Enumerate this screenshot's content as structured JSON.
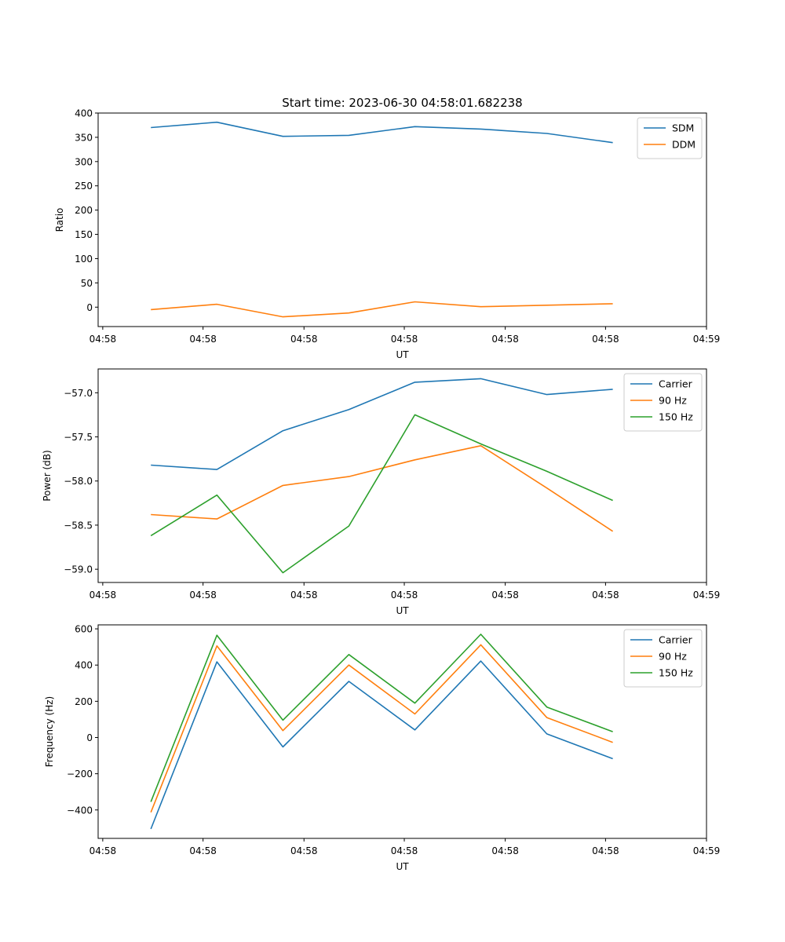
{
  "figure": {
    "title": "Start time: 2023-06-30 04:58:01.682238"
  },
  "colors": {
    "blue": "#1f77b4",
    "orange": "#ff7f0e",
    "green": "#2ca02c"
  },
  "chart_data": [
    {
      "type": "line",
      "title": "Start time: 2023-06-30 04:58:01.682238",
      "xlabel": "UT",
      "ylabel": "Ratio",
      "x_tick_labels": [
        "04:58",
        "04:58",
        "04:58",
        "04:58",
        "04:58",
        "04:58",
        "04:59"
      ],
      "y_ticks": [
        0,
        50,
        100,
        150,
        200,
        250,
        300,
        350,
        400
      ],
      "ylim": [
        -40,
        400
      ],
      "legend_position": "upper right",
      "series": [
        {
          "name": "SDM",
          "color": "#1f77b4",
          "x": [
            1,
            2,
            3,
            4,
            5,
            6,
            7,
            8
          ],
          "values": [
            370,
            381,
            352,
            354,
            372,
            367,
            358,
            339
          ]
        },
        {
          "name": "DDM",
          "color": "#ff7f0e",
          "x": [
            1,
            2,
            3,
            4,
            5,
            6,
            7,
            8
          ],
          "values": [
            -5,
            6,
            -20,
            -12,
            11,
            1,
            4,
            7
          ]
        }
      ]
    },
    {
      "type": "line",
      "xlabel": "UT",
      "ylabel": "Power (dB)",
      "x_tick_labels": [
        "04:58",
        "04:58",
        "04:58",
        "04:58",
        "04:58",
        "04:58",
        "04:59"
      ],
      "y_ticks": [
        -59.0,
        -58.5,
        -58.0,
        -57.5,
        -57.0
      ],
      "y_tick_labels": [
        "−59.0",
        "−58.5",
        "−58.0",
        "−57.5",
        "−57.0"
      ],
      "ylim": [
        -59.15,
        -56.73
      ],
      "legend_position": "upper right",
      "series": [
        {
          "name": "Carrier",
          "color": "#1f77b4",
          "x": [
            1,
            2,
            3,
            4,
            5,
            6,
            7,
            8
          ],
          "values": [
            -57.82,
            -57.87,
            -57.43,
            -57.19,
            -56.88,
            -56.84,
            -57.02,
            -56.96
          ]
        },
        {
          "name": "90 Hz",
          "color": "#ff7f0e",
          "x": [
            1,
            2,
            3,
            4,
            5,
            6,
            7,
            8
          ],
          "values": [
            -58.38,
            -58.43,
            -58.05,
            -57.95,
            -57.76,
            -57.6,
            -58.08,
            -58.57
          ]
        },
        {
          "name": "150 Hz",
          "color": "#2ca02c",
          "x": [
            1,
            2,
            3,
            4,
            5,
            6,
            7,
            8
          ],
          "values": [
            -58.62,
            -58.16,
            -59.04,
            -58.51,
            -57.25,
            -57.58,
            -57.89,
            -58.22
          ]
        }
      ]
    },
    {
      "type": "line",
      "xlabel": "UT",
      "ylabel": "Frequency (Hz)",
      "x_tick_labels": [
        "04:58",
        "04:58",
        "04:58",
        "04:58",
        "04:58",
        "04:58",
        "04:59"
      ],
      "y_ticks": [
        -400,
        -200,
        0,
        200,
        400,
        600
      ],
      "y_tick_labels": [
        "−400",
        "−200",
        "0",
        "200",
        "400",
        "600"
      ],
      "ylim": [
        -557,
        622
      ],
      "legend_position": "upper right",
      "series": [
        {
          "name": "Carrier",
          "color": "#1f77b4",
          "x": [
            1,
            2,
            3,
            4,
            5,
            6,
            7,
            8
          ],
          "values": [
            -505,
            418,
            -52,
            310,
            42,
            422,
            20,
            -117
          ]
        },
        {
          "name": "90 Hz",
          "color": "#ff7f0e",
          "x": [
            1,
            2,
            3,
            4,
            5,
            6,
            7,
            8
          ],
          "values": [
            -413,
            506,
            38,
            400,
            130,
            512,
            110,
            -27
          ]
        },
        {
          "name": "150 Hz",
          "color": "#2ca02c",
          "x": [
            1,
            2,
            3,
            4,
            5,
            6,
            7,
            8
          ],
          "values": [
            -355,
            565,
            96,
            458,
            190,
            570,
            168,
            32
          ]
        }
      ]
    }
  ]
}
